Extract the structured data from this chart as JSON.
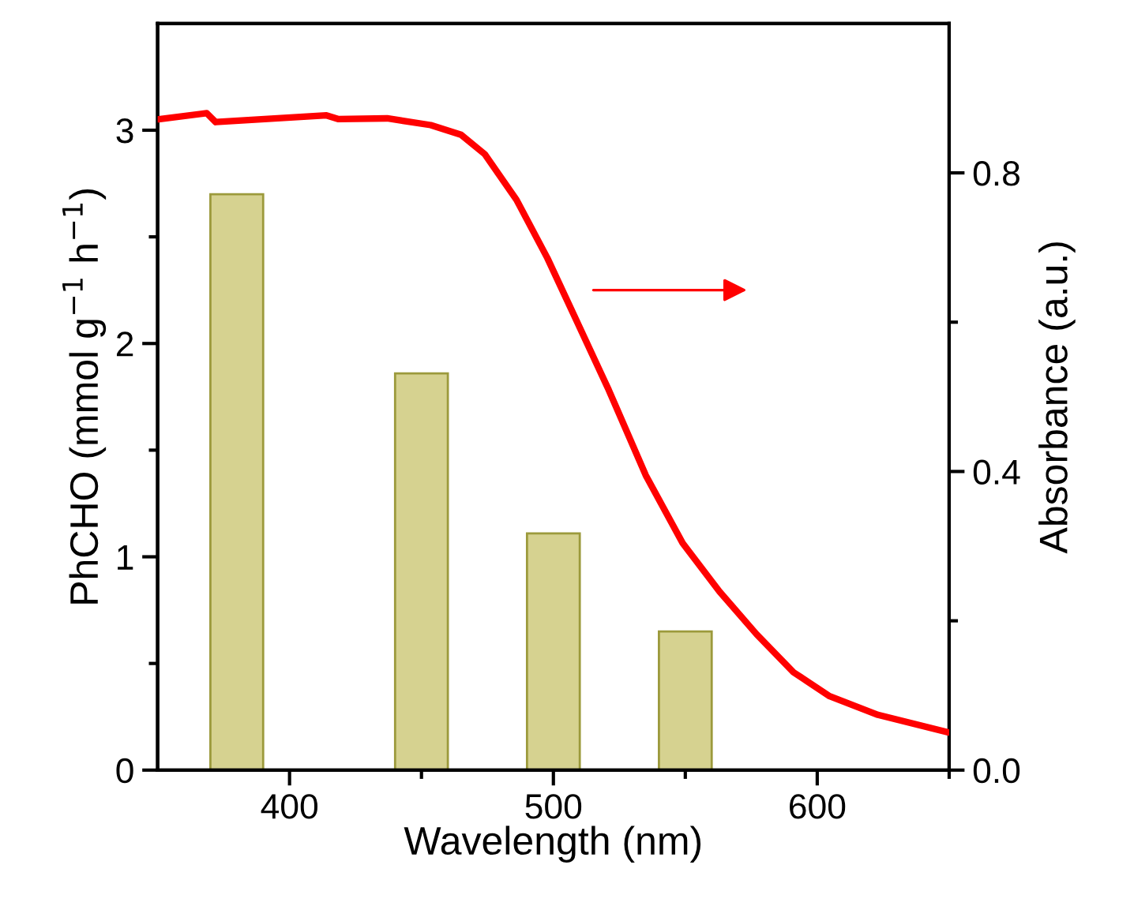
{
  "chart_data": {
    "type": "bar",
    "xlabel": "Wavelength (nm)",
    "ylabel": "PhCHO (mmol g$^{−1}$ h$^{−1}$)",
    "y2label": "Absorbance (a.u.)",
    "xlim": [
      350,
      650
    ],
    "xticks": [
      400,
      500,
      600
    ],
    "ylim": [
      0,
      3.5
    ],
    "yticks": [
      0,
      1,
      2,
      3
    ],
    "y2lim": [
      0,
      1.0
    ],
    "y2ticks": [
      {
        "value": 0,
        "label": "0.0"
      },
      0.4,
      0.8
    ],
    "grid": false,
    "legend": false,
    "series": [
      {
        "color": "#d6d290",
        "x": [
          380,
          450,
          500,
          550
        ],
        "values": [
          2.7,
          1.86,
          1.11,
          0.65
        ]
      },
      {
        "type": "line",
        "axis": "y2",
        "color": "#ff0000",
        "line_style": "solid",
        "marker": "none",
        "x": [
          351,
          368.6,
          372,
          414,
          418.6,
          437,
          453.5,
          465,
          474,
          486,
          497.7,
          508,
          521,
          535,
          549,
          563,
          577,
          591,
          604.7,
          623,
          649
        ],
        "values": [
          0.872,
          0.88,
          0.868,
          0.877,
          0.872,
          0.873,
          0.864,
          0.851,
          0.825,
          0.764,
          0.686,
          0.608,
          0.509,
          0.395,
          0.304,
          0.239,
          0.182,
          0.131,
          0.099,
          0.074,
          0.051
        ]
      }
    ]
  }
}
